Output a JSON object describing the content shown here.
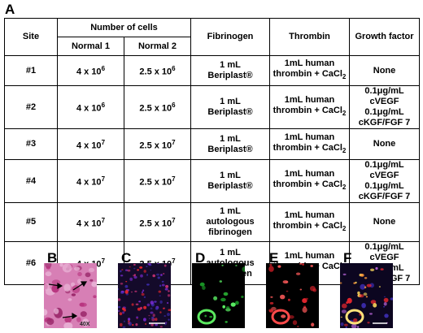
{
  "panels": {
    "A": "A",
    "B": "B",
    "C": "C",
    "D": "D",
    "E": "E",
    "F": "F"
  },
  "table": {
    "headers": {
      "site": "Site",
      "cells": "Number of cells",
      "normal1": "Normal 1",
      "normal2": "Normal 2",
      "fibrinogen": "Fibrinogen",
      "thrombin": "Thrombin",
      "growth": "Growth factor"
    },
    "rows": [
      {
        "site": "#1",
        "n1_base": "4 x 10",
        "n1_exp": "6",
        "n2_base": "2.5 x 10",
        "n2_exp": "6",
        "fib": "1 mL\nBeriplast®",
        "thr": "1mL human\nthrombin + CaCl",
        "thr_sub": "2",
        "gf": "None"
      },
      {
        "site": "#2",
        "n1_base": "4 x 10",
        "n1_exp": "6",
        "n2_base": "2.5 x 10",
        "n2_exp": "6",
        "fib": "1 mL\nBeriplast®",
        "thr": "1mL human\nthrombin + CaCl",
        "thr_sub": "2",
        "gf": "0.1μg/mL cVEGF\n0.1μg/mL cKGF/FGF 7"
      },
      {
        "site": "#3",
        "n1_base": "4 x 10",
        "n1_exp": "7",
        "n2_base": "2.5 x 10",
        "n2_exp": "7",
        "fib": "1 mL\nBeriplast®",
        "thr": "1mL human\nthrombin + CaCl",
        "thr_sub": "2",
        "gf": "None"
      },
      {
        "site": "#4",
        "n1_base": "4 x 10",
        "n1_exp": "7",
        "n2_base": "2.5 x 10",
        "n2_exp": "7",
        "fib": "1 mL\nBeriplast®",
        "thr": "1mL human\nthrombin + CaCl",
        "thr_sub": "2",
        "gf": "0.1μg/mL cVEGF\n0.1μg/mL cKGF/FGF 7"
      },
      {
        "site": "#5",
        "n1_base": "4 x 10",
        "n1_exp": "7",
        "n2_base": "2.5 x 10",
        "n2_exp": "7",
        "fib": "1 mL\nautologous\nfibrinogen",
        "thr": "1mL human\nthrombin + CaCl",
        "thr_sub": "2",
        "gf": "None"
      },
      {
        "site": "#6",
        "n1_base": "4 x 10",
        "n1_exp": "7",
        "n2_base": "2.5 x 10",
        "n2_exp": "7",
        "fib": "1 mL\nautologous\nfibrinogen",
        "thr": "1mL human\nthrombin + CaCl",
        "thr_sub": "2",
        "gf": "0.1μg/mL cVEGF\n0.1μg/mL cKGF/FGF 7"
      }
    ]
  },
  "micrographs": {
    "b_magnification": "40X",
    "colors": {
      "he_bg": "#d77fb5",
      "he_cell": "#b8357f",
      "dapi": "#3a2aa8",
      "green": "#2ec83a",
      "red": "#e8262e",
      "merge": "#f6d35a"
    }
  }
}
